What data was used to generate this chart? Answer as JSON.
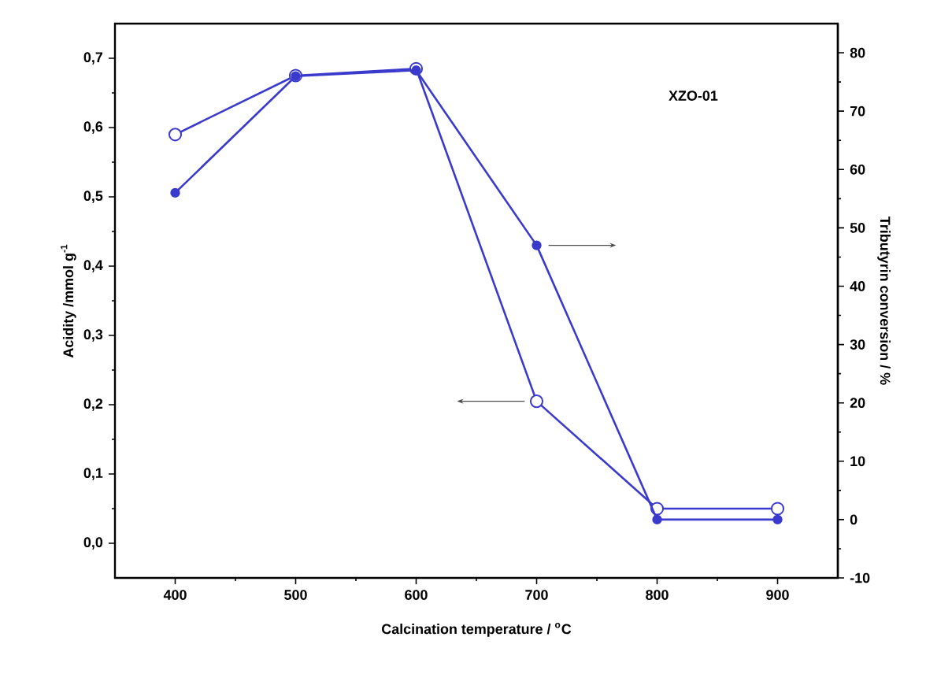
{
  "chart_data": {
    "type": "line",
    "xlabel": "Calcination temperature / $^{o}$C",
    "ylabel": "Acidity /mmol g$^{-1}$",
    "y2label": "Tributyrin conversion / %",
    "x": [
      400,
      500,
      600,
      700,
      800,
      900
    ],
    "series": [
      {
        "color": "#3a3acc",
        "values": [
          0.59,
          0.675,
          0.685,
          0.205,
          0.05,
          0.05
        ]
      },
      {
        "color": "#3a3acc",
        "axis": "y2",
        "values": [
          56,
          76,
          77,
          47,
          0,
          0
        ]
      }
    ],
    "xlim": [
      350,
      950
    ],
    "xticks": [
      400,
      500,
      600,
      700,
      800,
      900
    ],
    "ylim": [
      -0.05,
      0.75
    ],
    "yticks": [
      {
        "value": 0,
        "label": "0,0"
      },
      {
        "value": 0.1,
        "label": "0,1"
      },
      {
        "value": 0.2,
        "label": "0,2"
      },
      {
        "value": 0.3,
        "label": "0,3"
      },
      {
        "value": 0.4,
        "label": "0,4"
      },
      {
        "value": 0.5,
        "label": "0,5"
      },
      {
        "value": 0.6,
        "label": "0,6"
      },
      {
        "value": 0.7,
        "label": "0,7"
      }
    ],
    "y2lim": [
      -10,
      85
    ],
    "y2ticks": [
      -10,
      0,
      10,
      20,
      30,
      40,
      50,
      60,
      70,
      80
    ],
    "marker": "circle",
    "annotations": [
      "XZO-01"
    ]
  }
}
